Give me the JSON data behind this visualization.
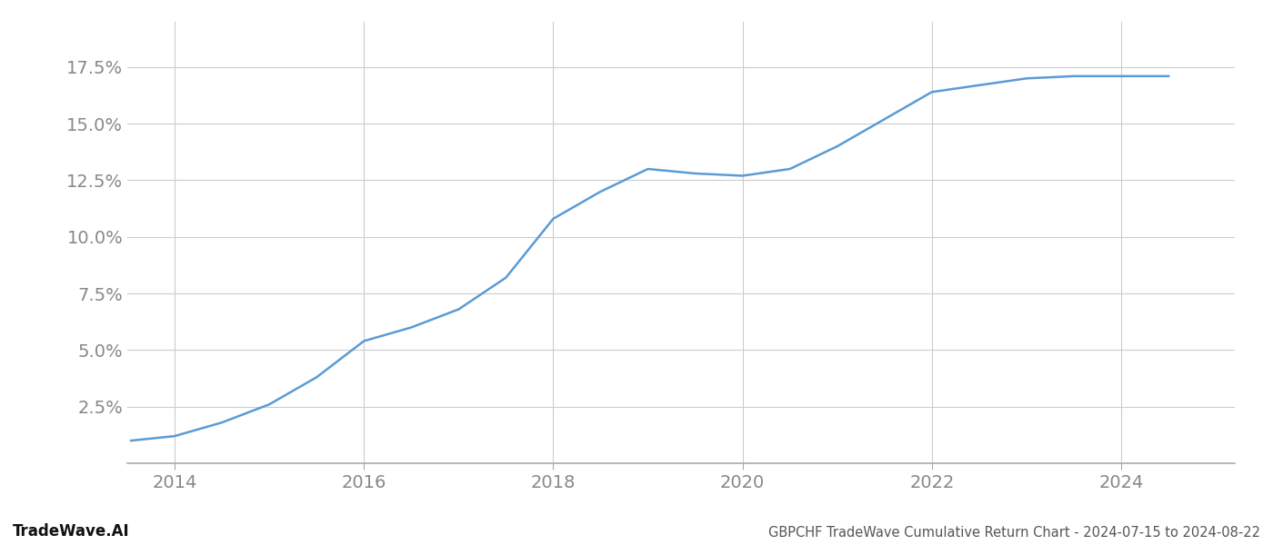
{
  "title": "GBPCHF TradeWave Cumulative Return Chart - 2024-07-15 to 2024-08-22",
  "watermark": "TradeWave.AI",
  "line_color": "#5b9bd5",
  "background_color": "#ffffff",
  "grid_color": "#cccccc",
  "x_years": [
    2013.54,
    2014.0,
    2014.5,
    2015.0,
    2015.5,
    2016.0,
    2016.5,
    2017.0,
    2017.5,
    2018.0,
    2018.5,
    2019.0,
    2019.5,
    2020.0,
    2020.5,
    2021.0,
    2021.5,
    2022.0,
    2022.5,
    2023.0,
    2023.5,
    2024.0,
    2024.5
  ],
  "y_values": [
    0.01,
    0.012,
    0.018,
    0.026,
    0.038,
    0.054,
    0.06,
    0.068,
    0.082,
    0.108,
    0.12,
    0.13,
    0.128,
    0.127,
    0.13,
    0.14,
    0.152,
    0.164,
    0.167,
    0.17,
    0.171,
    0.171,
    0.171
  ],
  "xlim": [
    2013.5,
    2025.2
  ],
  "ylim": [
    0.0,
    0.195
  ],
  "yticks": [
    0.025,
    0.05,
    0.075,
    0.1,
    0.125,
    0.15,
    0.175
  ],
  "xticks": [
    2014,
    2016,
    2018,
    2020,
    2022,
    2024
  ],
  "title_fontsize": 10.5,
  "watermark_fontsize": 12,
  "tick_fontsize": 14,
  "line_width": 1.8
}
